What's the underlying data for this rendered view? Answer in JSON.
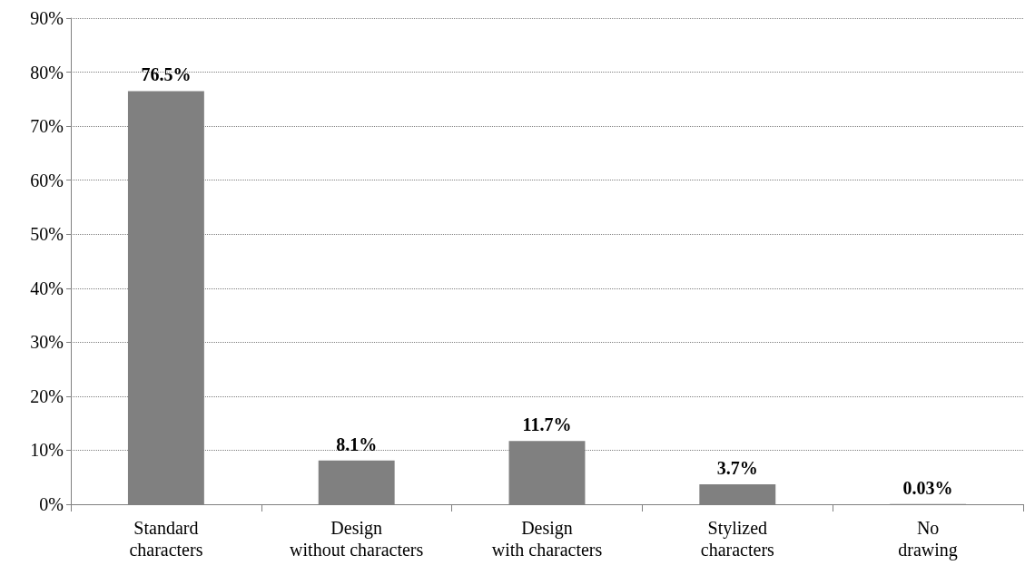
{
  "chart_data": {
    "type": "bar",
    "categories": [
      "Standard\ncharacters",
      "Design\nwithout characters",
      "Design\nwith characters",
      "Stylized\ncharacters",
      "No\ndrawing"
    ],
    "values": [
      76.5,
      8.1,
      11.7,
      3.7,
      0.03
    ],
    "value_labels": [
      "76.5%",
      "8.1%",
      "11.7%",
      "3.7%",
      "0.03%"
    ],
    "color": "#808080",
    "ylim": [
      0,
      90
    ],
    "yticks": [
      {
        "value": 0,
        "label": "0%"
      },
      {
        "value": 10,
        "label": "10%"
      },
      {
        "value": 20,
        "label": "20%"
      },
      {
        "value": 30,
        "label": "30%"
      },
      {
        "value": 40,
        "label": "40%"
      },
      {
        "value": 50,
        "label": "50%"
      },
      {
        "value": 60,
        "label": "60%"
      },
      {
        "value": 70,
        "label": "70%"
      },
      {
        "value": 80,
        "label": "80%"
      },
      {
        "value": 90,
        "label": "90%"
      }
    ],
    "grid": "y"
  }
}
